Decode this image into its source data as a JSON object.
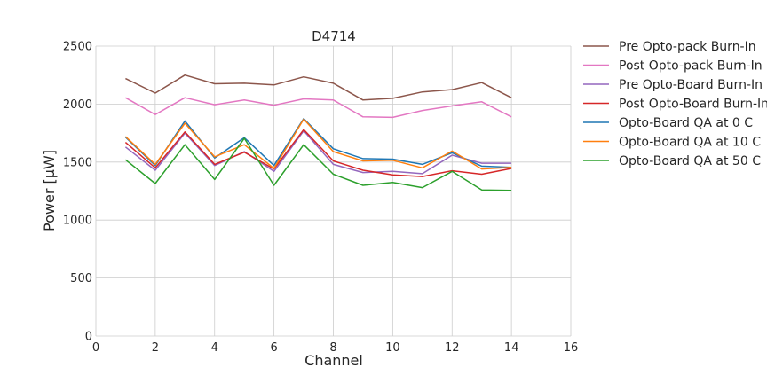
{
  "chart_data": {
    "type": "line",
    "title": "D4714",
    "xlabel": "Channel",
    "ylabel": "Power [µW]",
    "xlim": [
      0,
      16
    ],
    "ylim": [
      0,
      2500
    ],
    "xticks": [
      "0",
      "2",
      "4",
      "6",
      "8",
      "10",
      "12",
      "14",
      "16"
    ],
    "yticks": [
      "0",
      "500",
      "1000",
      "1500",
      "2000",
      "2500"
    ],
    "grid": true,
    "legend_position": "right, outside plot",
    "x": [
      1,
      2,
      3,
      4,
      5,
      6,
      7,
      8,
      9,
      10,
      11,
      12,
      13,
      14
    ],
    "series": [
      {
        "name": "Pre Opto-pack Burn-In",
        "color": "#8c564b",
        "values": [
          2220,
          2095,
          2250,
          2175,
          2180,
          2165,
          2235,
          2180,
          2035,
          2050,
          2105,
          2125,
          2185,
          2055
        ]
      },
      {
        "name": "Post Opto-pack Burn-In",
        "color": "#e377c2",
        "values": [
          2055,
          1910,
          2055,
          1995,
          2035,
          1990,
          2045,
          2035,
          1890,
          1885,
          1945,
          1985,
          2020,
          1890
        ]
      },
      {
        "name": "Pre Opto-Board Burn-In",
        "color": "#9467bd",
        "values": [
          1630,
          1430,
          1750,
          1470,
          1590,
          1420,
          1770,
          1480,
          1410,
          1420,
          1400,
          1560,
          1490,
          1490
        ]
      },
      {
        "name": "Post Opto-Board Burn-In",
        "color": "#d62728",
        "values": [
          1670,
          1450,
          1760,
          1480,
          1585,
          1440,
          1780,
          1510,
          1430,
          1390,
          1375,
          1425,
          1395,
          1445
        ]
      },
      {
        "name": "Opto-Board QA at 0 C",
        "color": "#1f77b4",
        "values": [
          1715,
          1470,
          1855,
          1535,
          1710,
          1470,
          1875,
          1615,
          1530,
          1525,
          1480,
          1580,
          1465,
          1455
        ]
      },
      {
        "name": "Opto-Board QA at 10 C",
        "color": "#ff7f0e",
        "values": [
          1720,
          1480,
          1835,
          1545,
          1650,
          1445,
          1870,
          1590,
          1510,
          1515,
          1450,
          1595,
          1440,
          1455
        ]
      },
      {
        "name": "Opto-Board QA at 50 C",
        "color": "#2ca02c",
        "values": [
          1520,
          1315,
          1650,
          1350,
          1705,
          1300,
          1650,
          1395,
          1300,
          1325,
          1280,
          1420,
          1260,
          1255
        ]
      }
    ]
  }
}
